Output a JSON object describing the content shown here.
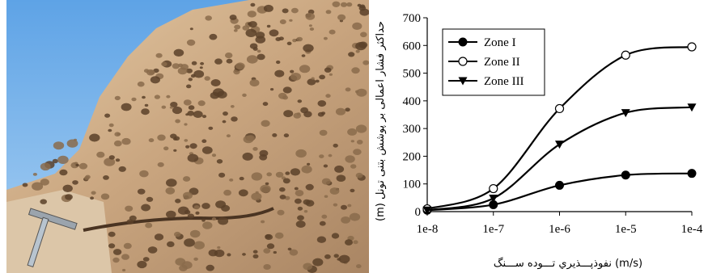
{
  "photo": {
    "icon": "rock-outcrop-with-hammer-photo",
    "colors": {
      "sky": "#7fb8e8",
      "rock": "#cfae8a",
      "rock_shadow": "#6e5236",
      "ground": "#d8c2a5"
    }
  },
  "chart_data": {
    "type": "line",
    "x": [
      "1e-8",
      "1e-7",
      "1e-6",
      "1e-5",
      "1e-4"
    ],
    "xscale": "log",
    "xlabel": "نفوذپـــذيري تـــوده ســـنگ (m/s)",
    "ylabel": "(m) حداکثر فشار اعمالی بر پوشش بتنی تونل",
    "ylim": [
      0,
      700
    ],
    "yticks": [
      0,
      100,
      200,
      300,
      400,
      500,
      600,
      700
    ],
    "grid": false,
    "legend": "top-left",
    "series": [
      {
        "name": "Zone I",
        "marker": "filled-circle",
        "values": [
          5,
          25,
          95,
          132,
          138
        ]
      },
      {
        "name": "Zone II",
        "marker": "open-circle",
        "values": [
          10,
          83,
          372,
          565,
          595
        ]
      },
      {
        "name": "Zone III",
        "marker": "filled-triangle-down",
        "values": [
          5,
          48,
          243,
          357,
          377
        ]
      }
    ]
  }
}
